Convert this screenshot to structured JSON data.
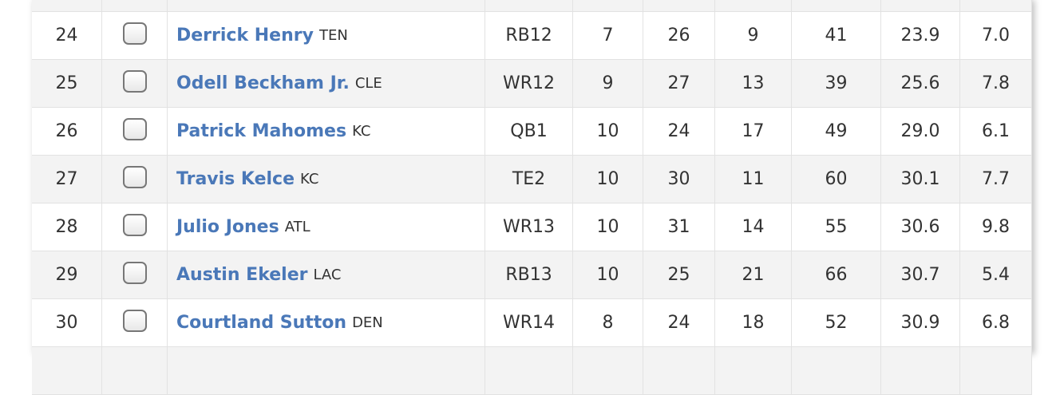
{
  "table": {
    "rows": [
      [
        "24",
        "Derrick Henry",
        "TEN",
        "RB12",
        "7",
        "26",
        "9",
        "41",
        "23.9",
        "7.0"
      ],
      [
        "25",
        "Odell Beckham Jr.",
        "CLE",
        "WR12",
        "9",
        "27",
        "13",
        "39",
        "25.6",
        "7.8"
      ],
      [
        "26",
        "Patrick Mahomes",
        "KC",
        "QB1",
        "10",
        "24",
        "17",
        "49",
        "29.0",
        "6.1"
      ],
      [
        "27",
        "Travis Kelce",
        "KC",
        "TE2",
        "10",
        "30",
        "11",
        "60",
        "30.1",
        "7.7"
      ],
      [
        "28",
        "Julio Jones",
        "ATL",
        "WR13",
        "10",
        "31",
        "14",
        "55",
        "30.6",
        "9.8"
      ],
      [
        "29",
        "Austin Ekeler",
        "LAC",
        "RB13",
        "10",
        "25",
        "21",
        "66",
        "30.7",
        "5.4"
      ],
      [
        "30",
        "Courtland Sutton",
        "DEN",
        "WR14",
        "8",
        "24",
        "18",
        "52",
        "30.9",
        "6.8"
      ]
    ]
  }
}
